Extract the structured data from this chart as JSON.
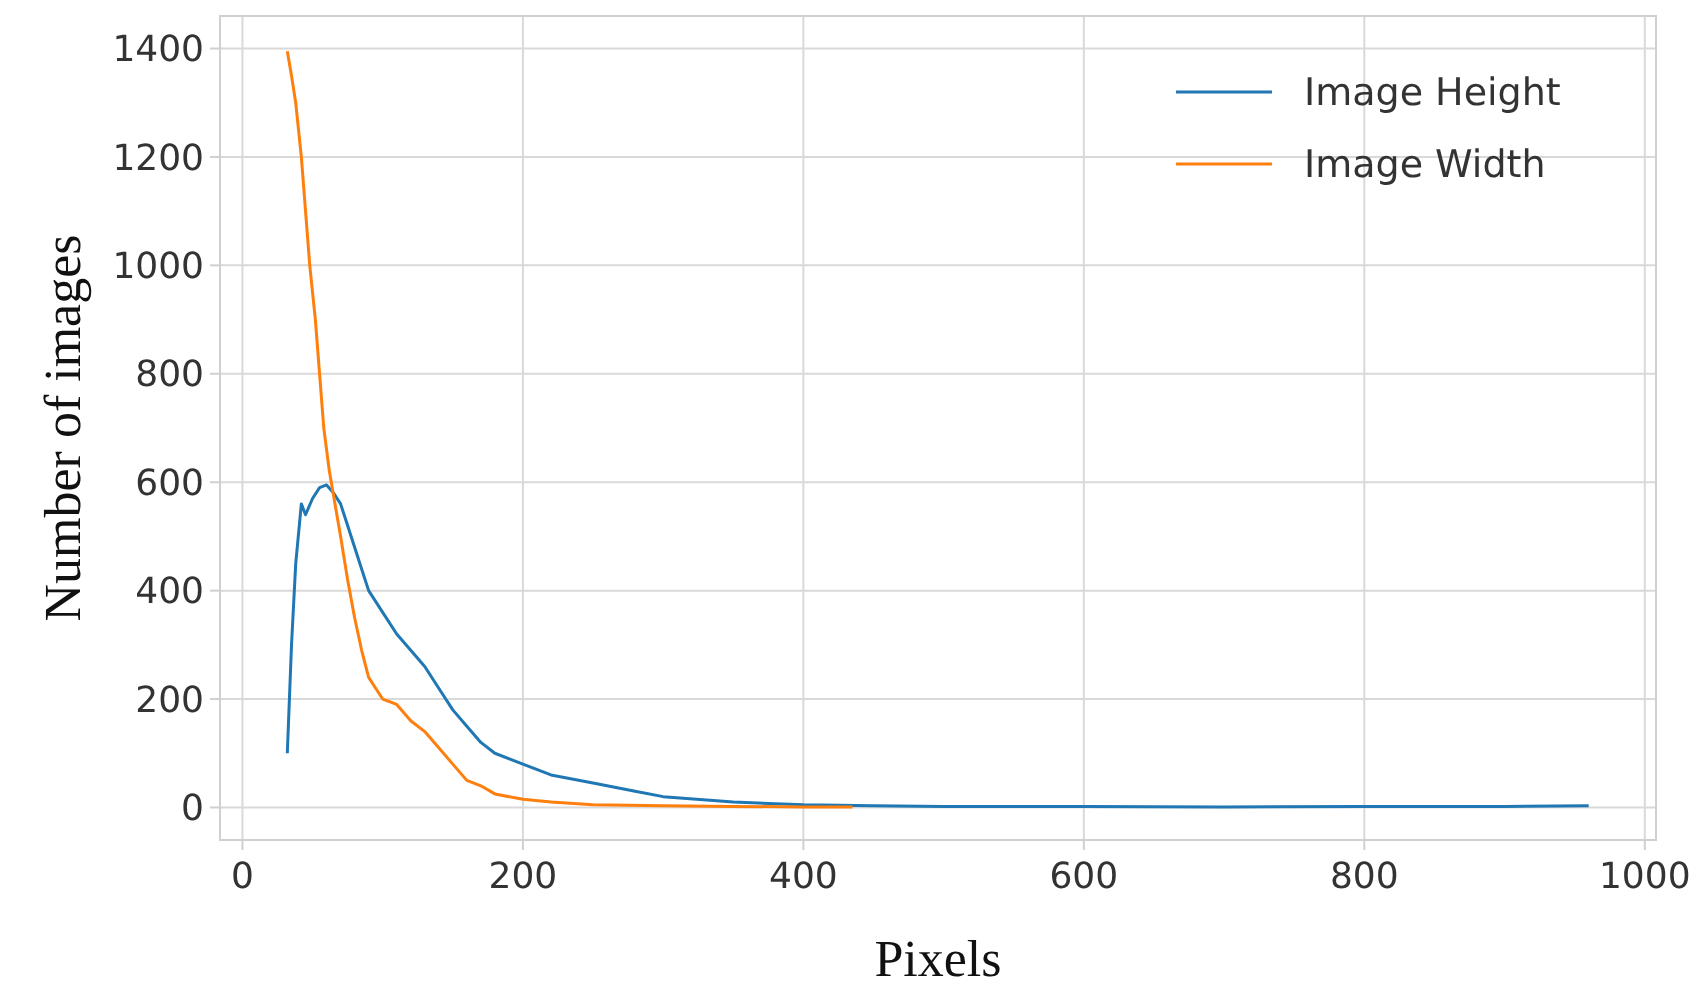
{
  "chart_data": {
    "type": "line",
    "xlabel": "Pixels",
    "ylabel": "Number of images",
    "xlim": [
      -16,
      1008
    ],
    "ylim": [
      -60,
      1460
    ],
    "xticks": [
      0,
      200,
      400,
      600,
      800,
      1000
    ],
    "yticks": [
      0,
      200,
      400,
      600,
      800,
      1000,
      1200,
      1400
    ],
    "grid": true,
    "legend": "top right",
    "series": [
      {
        "name": "Image Height",
        "color": "#1f77b4",
        "x": [
          32,
          35,
          38,
          42,
          45,
          50,
          55,
          60,
          65,
          70,
          75,
          80,
          85,
          90,
          100,
          110,
          120,
          130,
          140,
          150,
          160,
          170,
          180,
          200,
          220,
          250,
          280,
          300,
          350,
          400,
          450,
          500,
          600,
          700,
          800,
          900,
          960
        ],
        "values": [
          100,
          300,
          450,
          560,
          540,
          570,
          590,
          595,
          580,
          560,
          520,
          480,
          440,
          400,
          360,
          320,
          290,
          260,
          220,
          180,
          150,
          120,
          100,
          80,
          60,
          45,
          30,
          20,
          10,
          5,
          3,
          2,
          2,
          1,
          2,
          2,
          3
        ]
      },
      {
        "name": "Image Width",
        "color": "#ff7f0e",
        "x": [
          32,
          35,
          38,
          40,
          42,
          45,
          48,
          52,
          55,
          58,
          62,
          66,
          70,
          75,
          80,
          85,
          90,
          95,
          100,
          110,
          120,
          130,
          140,
          150,
          160,
          170,
          180,
          200,
          220,
          250,
          300,
          350,
          400,
          435
        ],
        "values": [
          1395,
          1350,
          1300,
          1250,
          1200,
          1100,
          1000,
          900,
          800,
          700,
          620,
          560,
          500,
          420,
          350,
          290,
          240,
          220,
          200,
          190,
          160,
          140,
          110,
          80,
          50,
          40,
          25,
          15,
          10,
          5,
          3,
          2,
          1,
          1
        ]
      }
    ]
  }
}
